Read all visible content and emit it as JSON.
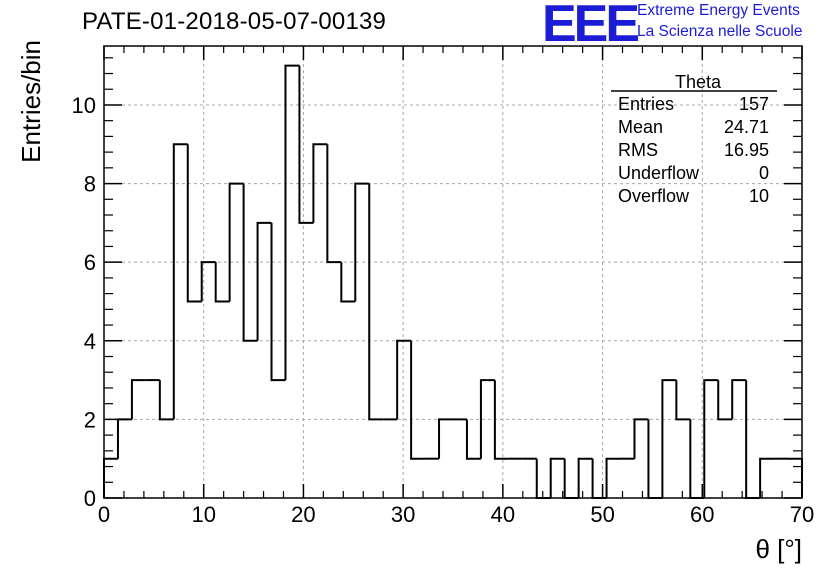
{
  "header": {
    "title": "PATE-01-2018-05-07-00139",
    "logo_mark": "EEE",
    "logo_line1": "Extreme Energy Events",
    "logo_line2": "La Scienza nelle Scuole"
  },
  "stats_box": {
    "title": "Theta",
    "rows": [
      {
        "label": "Entries",
        "value": "157"
      },
      {
        "label": "Mean",
        "value": "24.71"
      },
      {
        "label": "RMS",
        "value": "16.95"
      },
      {
        "label": "Underflow",
        "value": "0"
      },
      {
        "label": "Overflow",
        "value": "10"
      }
    ]
  },
  "chart_data": {
    "type": "bar",
    "subtype": "histogram",
    "bin_width": 1.4,
    "x_start": 0,
    "values": [
      1,
      2,
      3,
      3,
      2,
      9,
      5,
      6,
      5,
      8,
      4,
      7,
      3,
      11,
      7,
      9,
      6,
      5,
      8,
      2,
      2,
      4,
      1,
      1,
      2,
      2,
      1,
      3,
      1,
      1,
      1,
      0,
      1,
      0,
      1,
      0,
      1,
      1,
      2,
      0,
      3,
      2,
      0,
      3,
      2,
      3,
      0,
      1,
      1,
      1
    ],
    "xlabel": "θ [°]",
    "ylabel": "Entries/bin",
    "xlim": [
      0,
      70
    ],
    "ylim": [
      0,
      11.5
    ],
    "x_ticks": [
      "0",
      "10",
      "20",
      "30",
      "40",
      "50",
      "60",
      "70"
    ],
    "y_ticks": [
      "0",
      "2",
      "4",
      "6",
      "8",
      "10"
    ],
    "grid": true,
    "line_color": "#000000",
    "grid_color": "#a8a8a8"
  }
}
